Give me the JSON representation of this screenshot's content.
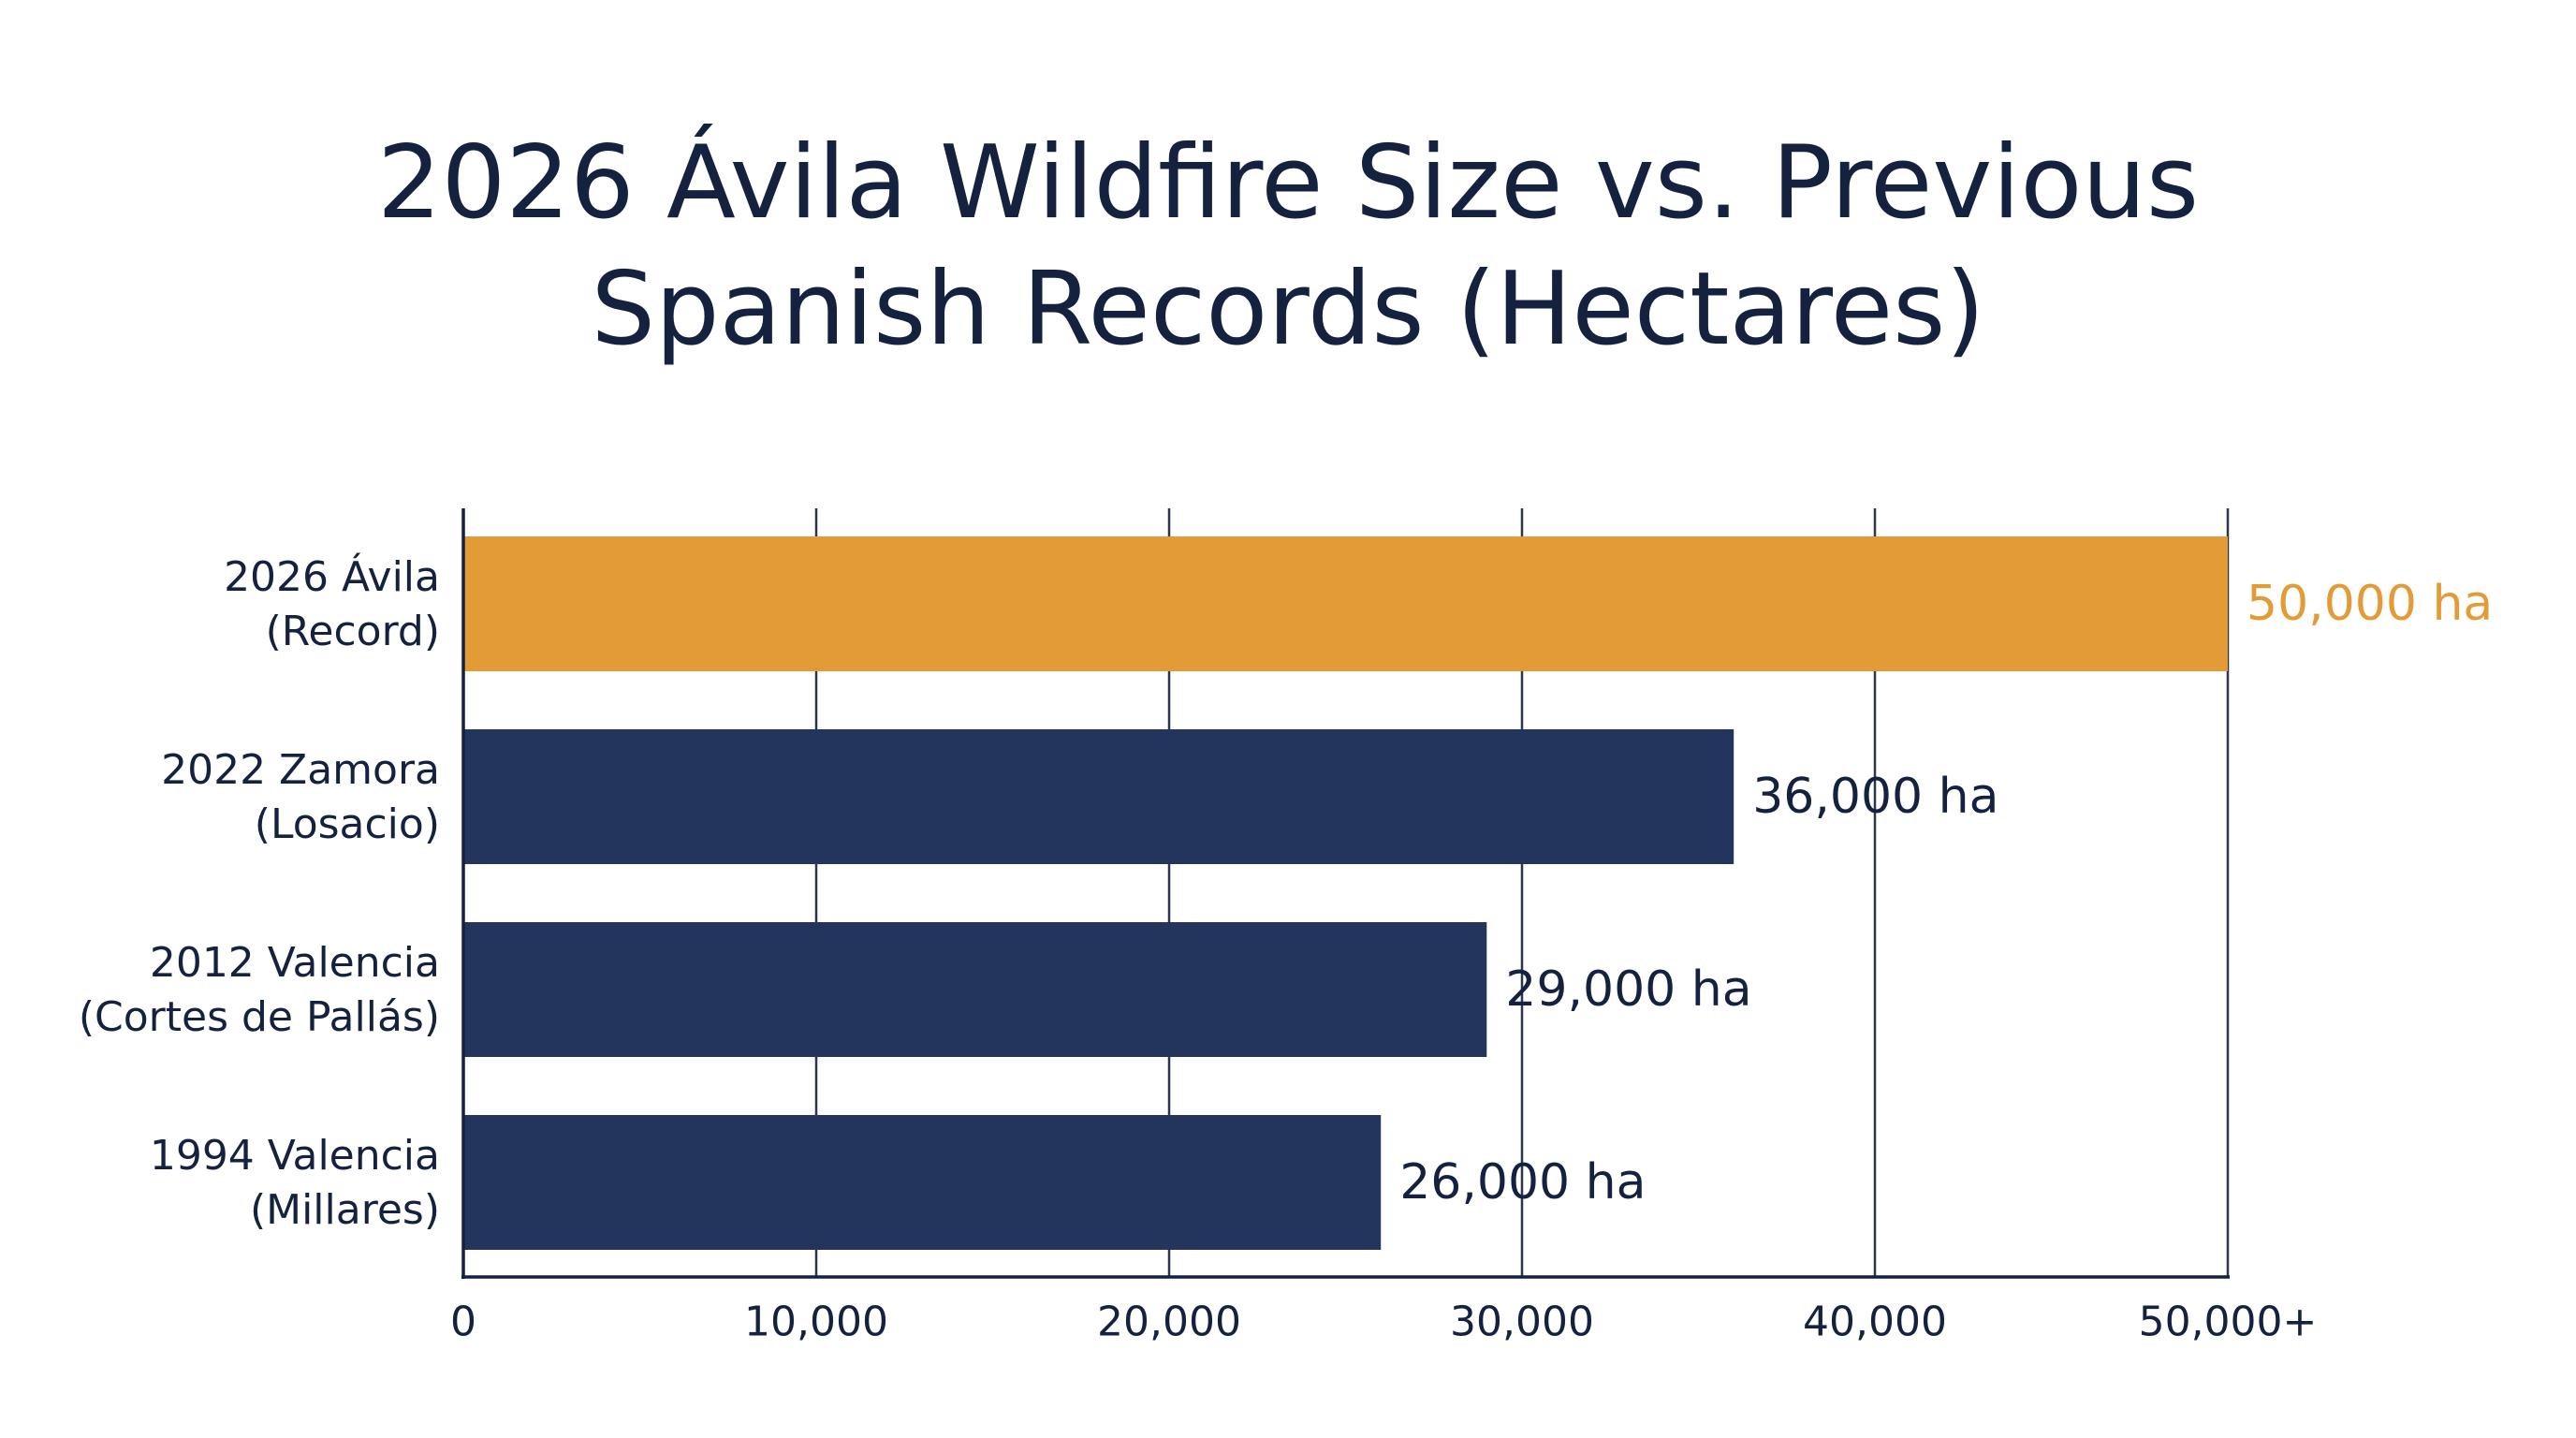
{
  "chart_data": {
    "type": "bar",
    "orientation": "horizontal",
    "title": "2026 Ávila Wildfire Size vs. Previous Spanish Records (Hectares)",
    "categories": [
      [
        "2026 Ávila",
        "(Record)"
      ],
      [
        "2022 Zamora",
        "(Losacio)"
      ],
      [
        "2012 Valencia",
        "(Cortes de Pallás)"
      ],
      [
        "1994 Valencia",
        "(Millares)"
      ]
    ],
    "values": [
      50000,
      36000,
      29000,
      26000
    ],
    "value_labels": [
      "50,000 ha",
      "36,000 ha",
      "29,000 ha",
      "26,000 ha"
    ],
    "colors": [
      "#e39b37",
      "#23345d",
      "#23345d",
      "#23345d"
    ],
    "xlim": [
      0,
      50000
    ],
    "xticks": [
      0,
      10000,
      20000,
      30000,
      40000,
      50000
    ],
    "xtick_labels": [
      "0",
      "10,000",
      "20,000",
      "30,000",
      "40,000",
      "50,000+"
    ],
    "grid": "vertical",
    "legend": "none"
  }
}
